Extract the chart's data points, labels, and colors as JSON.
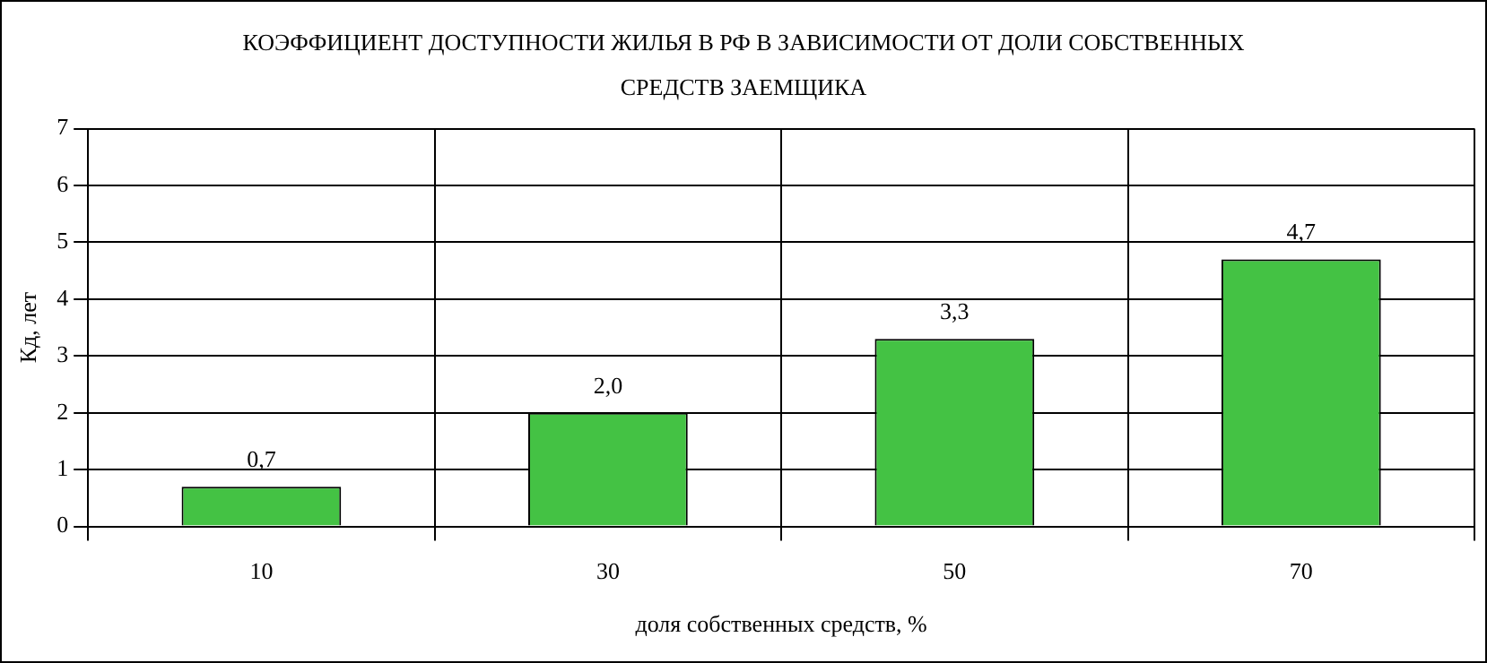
{
  "chart_data": {
    "type": "bar",
    "title": "КОЭФФИЦИЕНТ ДОСТУПНОСТИ ЖИЛЬЯ В РФ В ЗАВИСИМОСТИ ОТ ДОЛИ СОБСТВЕННЫХ СРЕДСТВ ЗАЕМЩИКА",
    "xlabel": "доля собственных средств, %",
    "ylabel": "Кд, лет",
    "categories": [
      "10",
      "30",
      "50",
      "70"
    ],
    "values": [
      0.7,
      2.0,
      3.3,
      4.7
    ],
    "value_labels": [
      "0,7",
      "2,0",
      "3,3",
      "4,7"
    ],
    "color": "#44c244",
    "ylim": [
      0,
      7
    ],
    "yticks": [
      0,
      1,
      2,
      3,
      4,
      5,
      6,
      7
    ],
    "grid": true,
    "legend": false
  }
}
